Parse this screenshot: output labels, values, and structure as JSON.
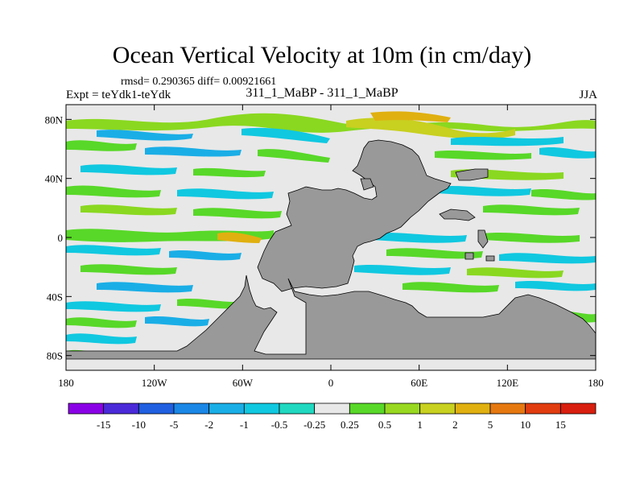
{
  "header": {
    "title": "Ocean Vertical Velocity at 10m (in cm/day)",
    "stats": "rmsd= 0.290365 diff= 0.00921661",
    "experiment": "Expt = teYdk1-teYdk",
    "case": "311_1_MaBP - 311_1_MaBP",
    "season": "JJA"
  },
  "chart_data": {
    "type": "heatmap",
    "title": "Ocean Vertical Velocity at 10m (in cm/day)",
    "xlabel": "",
    "ylabel": "",
    "xlim": [
      -180,
      180
    ],
    "ylim": [
      -90,
      90
    ],
    "x_ticks": [
      {
        "value": -180,
        "label": "180"
      },
      {
        "value": -120,
        "label": "120W"
      },
      {
        "value": -60,
        "label": "60W"
      },
      {
        "value": 0,
        "label": "0"
      },
      {
        "value": 60,
        "label": "60E"
      },
      {
        "value": 120,
        "label": "120E"
      },
      {
        "value": 180,
        "label": "180"
      }
    ],
    "y_ticks": [
      {
        "value": 80,
        "label": "80N"
      },
      {
        "value": 40,
        "label": "40N"
      },
      {
        "value": 0,
        "label": "0"
      },
      {
        "value": -40,
        "label": "40S"
      },
      {
        "value": -80,
        "label": "80S"
      }
    ],
    "colorbar": {
      "labels": [
        "-15",
        "-10",
        "-5",
        "-2",
        "-1",
        "-0.5",
        "-0.25",
        "0.25",
        "0.5",
        "1",
        "2",
        "5",
        "10",
        "15"
      ],
      "colors": [
        "#8a00e6",
        "#4a2ad8",
        "#1f5fe0",
        "#1a86e6",
        "#1aaee6",
        "#10c8e0",
        "#20d8c0",
        "#e8e8e8",
        "#58d828",
        "#98d820",
        "#c8d020",
        "#e0b010",
        "#e67810",
        "#e03c10",
        "#d81e0e"
      ]
    },
    "land_color": "#999999",
    "background_value_color": "#e8e8e8"
  }
}
